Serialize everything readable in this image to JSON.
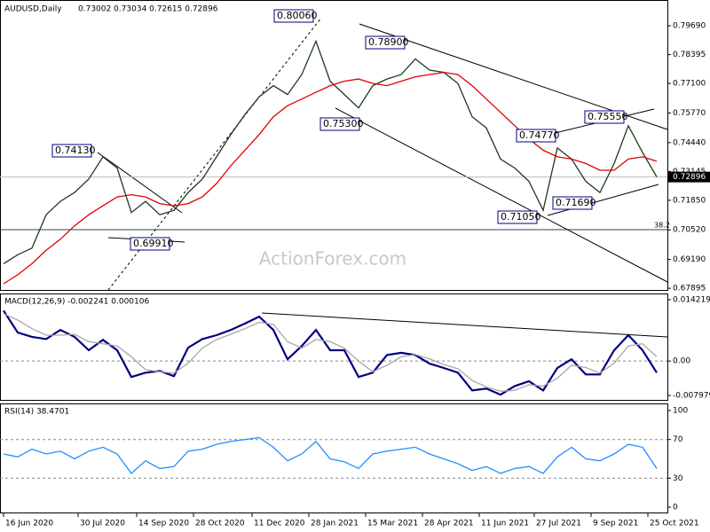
{
  "chart_data": [
    {
      "type": "line",
      "title": "AUDUSD,Daily",
      "subtitle": "0.73002 0.73034 0.72615 0.72896",
      "watermark": "ActionForex.com",
      "x": [
        0,
        8,
        16,
        24,
        32,
        40,
        48,
        56,
        64,
        72,
        80,
        88,
        96,
        104,
        112,
        120,
        128,
        136,
        144,
        152,
        160,
        168,
        176,
        184,
        192,
        200,
        208,
        216,
        224,
        232,
        240,
        248,
        256,
        264,
        272,
        280,
        288,
        296,
        304,
        312,
        320,
        328,
        336,
        344,
        352,
        360,
        368
      ],
      "xlim": [
        -2,
        374
      ],
      "ylim": [
        0.6782,
        0.8069
      ],
      "yticks": [
        {
          "value": 0.7969,
          "label": "0.79690"
        },
        0.78395,
        {
          "value": 0.771,
          "label": "0.77100"
        },
        {
          "value": 0.7577,
          "label": "0.75770"
        },
        {
          "value": 0.7444,
          "label": "0.74440"
        },
        0.73145,
        {
          "value": 0.7185,
          "label": "0.71850"
        },
        {
          "value": 0.7052,
          "label": "0.70520"
        },
        {
          "value": 0.6919,
          "label": "0.69190"
        },
        0.67895
      ],
      "last_price": 0.72896,
      "series": [
        {
          "color": "#1c3a1c",
          "values": [
            0.69,
            0.694,
            0.697,
            0.712,
            0.718,
            0.722,
            0.728,
            0.738,
            0.733,
            0.713,
            0.718,
            0.712,
            0.714,
            0.722,
            0.728,
            0.738,
            0.748,
            0.757,
            0.765,
            0.77,
            0.766,
            0.775,
            0.79,
            0.772,
            0.766,
            0.76,
            0.77,
            0.773,
            0.775,
            0.782,
            0.777,
            0.776,
            0.771,
            0.756,
            0.751,
            0.737,
            0.733,
            0.727,
            0.714,
            0.742,
            0.737,
            0.727,
            0.722,
            0.735,
            0.752,
            0.74,
            0.729
          ]
        },
        {
          "color": "#e00000",
          "values": [
            0.681,
            0.685,
            0.69,
            0.696,
            0.701,
            0.707,
            0.712,
            0.716,
            0.72,
            0.721,
            0.72,
            0.717,
            0.716,
            0.717,
            0.72,
            0.726,
            0.734,
            0.741,
            0.748,
            0.756,
            0.761,
            0.764,
            0.767,
            0.77,
            0.772,
            0.773,
            0.771,
            0.77,
            0.772,
            0.774,
            0.775,
            0.776,
            0.775,
            0.77,
            0.764,
            0.758,
            0.752,
            0.746,
            0.741,
            0.738,
            0.737,
            0.735,
            0.732,
            0.732,
            0.737,
            0.738,
            0.736
          ]
        }
      ],
      "annotations": [
        "0.80060",
        "0.78900",
        "0.75300",
        "0.74130",
        "0.69910",
        "0.75550",
        "0.74770",
        "0.71690",
        "0.71050",
        "38.2"
      ]
    },
    {
      "type": "line",
      "title": "MACD(12,26,9) -0.002241 0.000106",
      "x": [
        0,
        8,
        16,
        24,
        32,
        40,
        48,
        56,
        64,
        72,
        80,
        88,
        96,
        104,
        112,
        120,
        128,
        136,
        144,
        152,
        160,
        168,
        176,
        184,
        192,
        200,
        208,
        216,
        224,
        232,
        240,
        248,
        256,
        264,
        272,
        280,
        288,
        296,
        304,
        312,
        320,
        328,
        336,
        344,
        352,
        360,
        368
      ],
      "xlim": [
        -2,
        374
      ],
      "ylim": [
        -0.007979,
        0.014219
      ],
      "yticks": [
        0.014219,
        {
          "value": 0,
          "label": "0.00"
        },
        -0.007979
      ],
      "series": [
        {
          "color": "#000080",
          "values": [
            0.0117,
            0.0066,
            0.0056,
            0.0051,
            0.0072,
            0.0056,
            0.0025,
            0.0049,
            0.0025,
            -0.0037,
            -0.0027,
            -0.0023,
            -0.0035,
            0.0031,
            0.0051,
            0.006,
            0.0072,
            0.0087,
            0.0103,
            0.0072,
            0.0004,
            0.0035,
            0.0072,
            0.0025,
            0.0025,
            -0.0037,
            -0.0027,
            0.0014,
            0.0019,
            0.0014,
            -0.0006,
            -0.0016,
            -0.0027,
            -0.0068,
            -0.0064,
            -0.0078,
            -0.0058,
            -0.0047,
            -0.0068,
            -0.0016,
            0.0004,
            -0.0031,
            -0.0031,
            0.0025,
            0.006,
            0.0025,
            -0.0027
          ]
        },
        {
          "color": "#a8a8a8",
          "values": [
            0.011,
            0.0095,
            0.0075,
            0.006,
            0.006,
            0.0062,
            0.0045,
            0.004,
            0.0035,
            0.001,
            -0.002,
            -0.0025,
            -0.0028,
            -0.0005,
            0.003,
            0.005,
            0.0062,
            0.0075,
            0.009,
            0.0085,
            0.0045,
            0.003,
            0.005,
            0.0045,
            0.003,
            0.0,
            -0.0025,
            -0.001,
            0.001,
            0.0015,
            0.0005,
            -0.0008,
            -0.0018,
            -0.0045,
            -0.006,
            -0.007,
            -0.0068,
            -0.0055,
            -0.0058,
            -0.004,
            -0.001,
            -0.0015,
            -0.0028,
            -0.0005,
            0.0035,
            0.004,
            0.001
          ]
        }
      ]
    },
    {
      "type": "line",
      "title": "RSI(14) 38.4701",
      "x": [
        0,
        8,
        16,
        24,
        32,
        40,
        48,
        56,
        64,
        72,
        80,
        88,
        96,
        104,
        112,
        120,
        128,
        136,
        144,
        152,
        160,
        168,
        176,
        184,
        192,
        200,
        208,
        216,
        224,
        232,
        240,
        248,
        256,
        264,
        272,
        280,
        288,
        296,
        304,
        312,
        320,
        328,
        336,
        344,
        352,
        360,
        368
      ],
      "xlim": [
        -2,
        374
      ],
      "ylim": [
        0,
        100
      ],
      "yticks": [
        100,
        70,
        30,
        0
      ],
      "xticks": [
        {
          "value": 0,
          "label": "16 Jun 2020"
        },
        {
          "value": 42,
          "label": "30 Jul 2020"
        },
        {
          "value": 75,
          "label": "14 Sep 2020"
        },
        {
          "value": 107,
          "label": "28 Oct 2020"
        },
        {
          "value": 140,
          "label": "11 Dec 2020"
        },
        {
          "value": 172,
          "label": "28 Jan 2021"
        },
        {
          "value": 204,
          "label": "15 Mar 2021"
        },
        {
          "value": 236,
          "label": "28 Apr 2021"
        },
        {
          "value": 268,
          "label": "11 Jun 2021"
        },
        {
          "value": 299,
          "label": "27 Jul 2021"
        },
        {
          "value": 331,
          "label": "9 Sep 2021"
        },
        {
          "value": 363,
          "label": "25 Oct 2021"
        }
      ],
      "series": [
        {
          "color": "#1e90ff",
          "values": [
            55,
            52,
            60,
            55,
            58,
            50,
            58,
            62,
            55,
            35,
            48,
            40,
            42,
            58,
            60,
            65,
            68,
            70,
            72,
            62,
            48,
            55,
            68,
            50,
            47,
            40,
            55,
            58,
            60,
            62,
            55,
            50,
            45,
            38,
            42,
            35,
            40,
            42,
            35,
            52,
            62,
            50,
            48,
            55,
            65,
            62,
            40
          ]
        }
      ]
    }
  ]
}
